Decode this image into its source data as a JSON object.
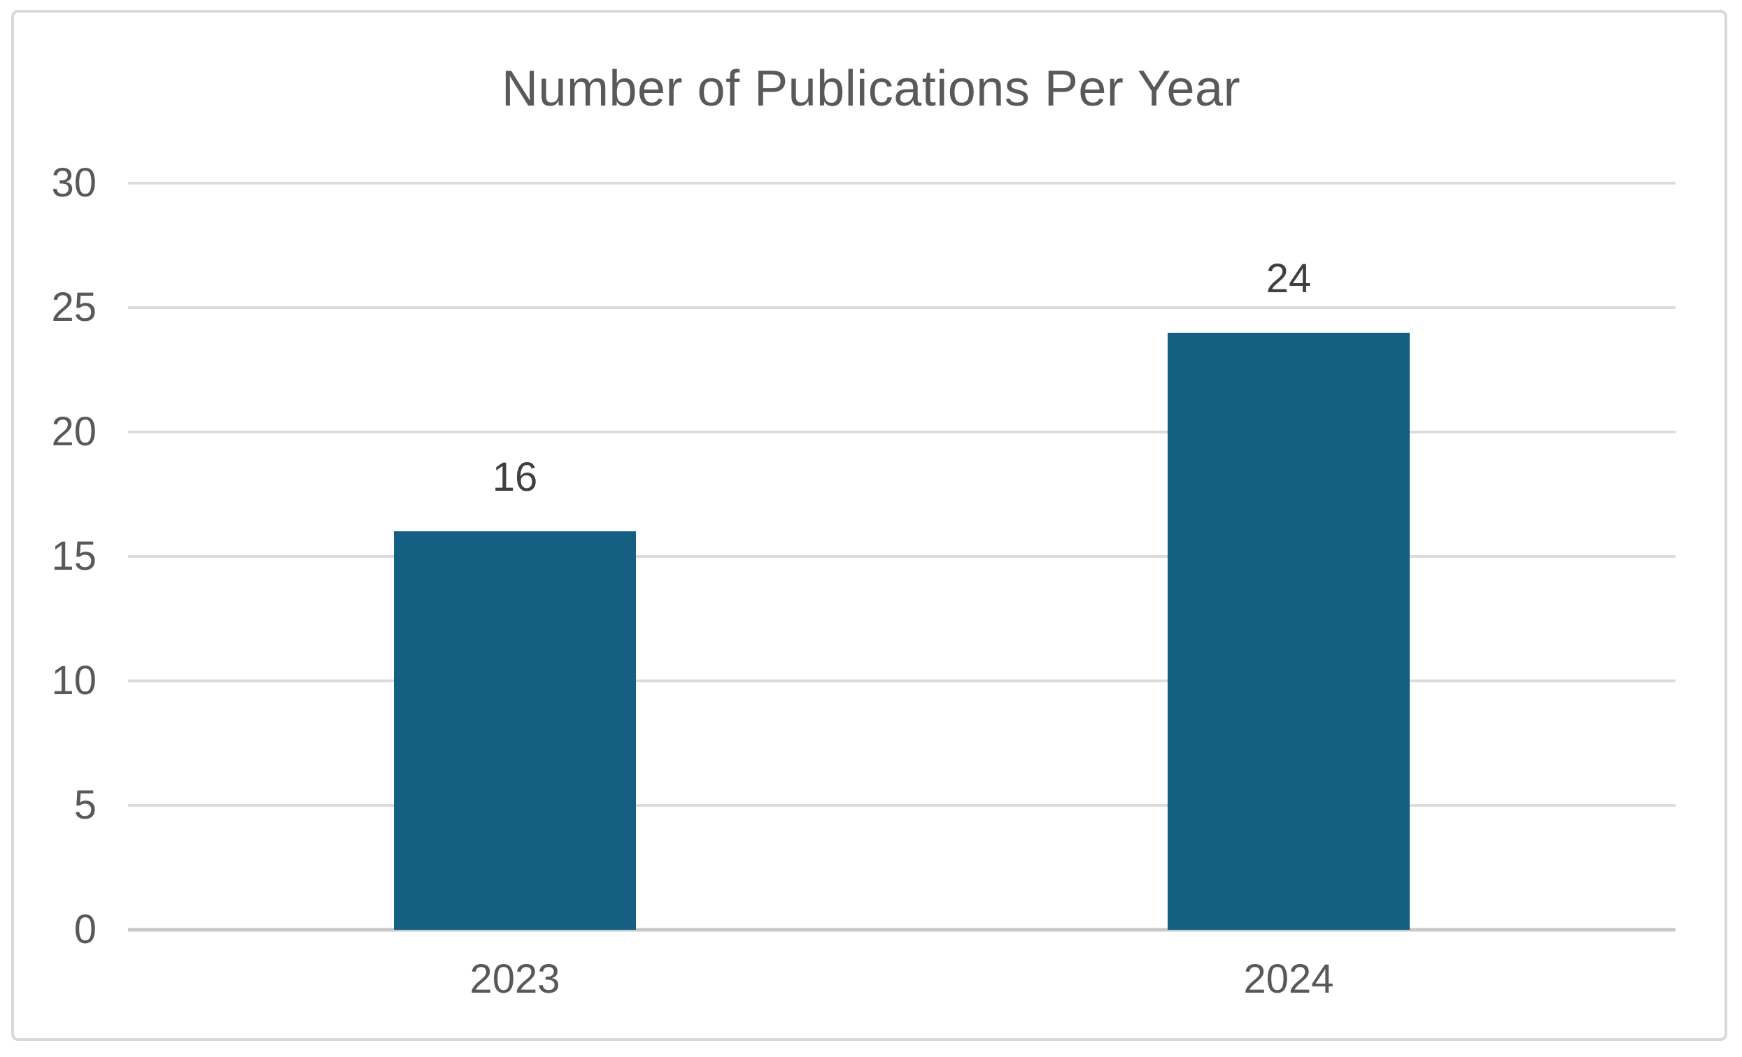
{
  "chart_data": {
    "type": "bar",
    "title": "Number of Publications Per Year",
    "categories": [
      "2023",
      "2024"
    ],
    "values": [
      16,
      24
    ],
    "data_labels": [
      "16",
      "24"
    ],
    "xlabel": "",
    "ylabel": "",
    "ylim": [
      0,
      30
    ],
    "yticks": [
      0,
      5,
      10,
      15,
      20,
      25,
      30
    ],
    "grid": true,
    "legend": false,
    "colors": {
      "bar": "#156082",
      "grid": "#DCDCDC",
      "axis_line": "#C9C9C9",
      "border": "#D9D9D9",
      "title_text": "#595959",
      "tick_text": "#595959",
      "data_label_text": "#404040",
      "background": "#FFFFFF"
    }
  }
}
